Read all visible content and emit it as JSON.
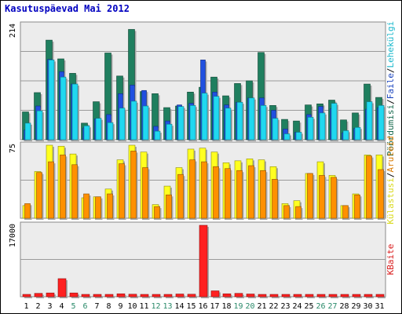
{
  "chart_data": {
    "type": "bar",
    "title": "Kasutuspäevad Mai 2012",
    "categories": [
      "1",
      "2",
      "3",
      "4",
      "5",
      "6",
      "7",
      "8",
      "9",
      "10",
      "11",
      "12",
      "13",
      "14",
      "15",
      "16",
      "17",
      "18",
      "19",
      "20",
      "21",
      "22",
      "23",
      "24",
      "25",
      "26",
      "27",
      "28",
      "29",
      "30",
      "31"
    ],
    "weekend_days": [
      "5",
      "6",
      "12",
      "13",
      "19",
      "20",
      "26",
      "27"
    ],
    "panels": [
      {
        "name": "top",
        "ymax_label": "214",
        "ymax": 214,
        "legend": [
          "Pöördumisi",
          "/",
          "Faile",
          "/",
          "Lehekülgi"
        ],
        "series": [
          {
            "name": "Pöördumisi",
            "color": "#1f7f5f",
            "values": [
              52,
              88,
              186,
              151,
              124,
              31,
              71,
              162,
              119,
              206,
              90,
              86,
              60,
              63,
              89,
              98,
              117,
              82,
              105,
              110,
              163,
              64,
              38,
              35,
              65,
              67,
              74,
              37,
              50,
              104,
              79
            ]
          },
          {
            "name": "Faile",
            "color": "#2050e0",
            "values": [
              18,
              63,
              150,
              127,
              104,
              22,
              39,
              47,
              86,
              102,
              92,
              25,
              35,
              65,
              68,
              149,
              89,
              65,
              70,
              78,
              78,
              55,
              20,
              14,
              47,
              62,
              58,
              13,
              21,
              57,
              60
            ]
          },
          {
            "name": "Lehekülgi",
            "color": "#20d8f0",
            "values": [
              31,
              54,
              149,
              117,
              104,
              26,
              40,
              32,
              59,
              72,
              63,
              16,
              29,
              62,
              64,
              87,
              81,
              59,
              70,
              78,
              64,
              40,
              11,
              14,
              42,
              50,
              68,
              17,
              23,
              71,
              64
            ]
          }
        ]
      },
      {
        "name": "middle",
        "ymax_label": "75",
        "ymax": 75,
        "legend": [
          "Külastusi",
          "/",
          "Aruteid"
        ],
        "series": [
          {
            "name": "Külastusi",
            "color": "#ffff20",
            "values": [
              13,
              48,
              75,
              74,
              66,
              21,
              22,
              30,
              60,
              75,
              68,
              14,
              33,
              52,
              71,
              72,
              68,
              57,
              59,
              61,
              60,
              53,
              15,
              18,
              46,
              58,
              44,
              13,
              25,
              65,
              65
            ]
          },
          {
            "name": "Aruteid",
            "color": "#ff9000",
            "values": [
              15,
              47,
              58,
              65,
              55,
              25,
              22,
              25,
              56,
              69,
              52,
              12,
              24,
              45,
              60,
              58,
              53,
              51,
              49,
              54,
              49,
              40,
              13,
              12,
              46,
              44,
              42,
              13,
              24,
              64,
              50
            ]
          }
        ]
      },
      {
        "name": "bottom",
        "ymax_label": "17000",
        "ymax": 17000,
        "legend": [
          "KBaite"
        ],
        "series": [
          {
            "name": "KBaite",
            "color": "#ff2020",
            "values": [
              450,
              800,
              900,
              4300,
              900,
              400,
              120,
              350,
              700,
              600,
              500,
              400,
              300,
              650,
              600,
              17000,
              1400,
              700,
              800,
              650,
              350,
              260,
              150,
              200,
              550,
              500,
              500,
              200,
              400,
              500,
              400
            ]
          }
        ]
      }
    ],
    "grid": true
  }
}
